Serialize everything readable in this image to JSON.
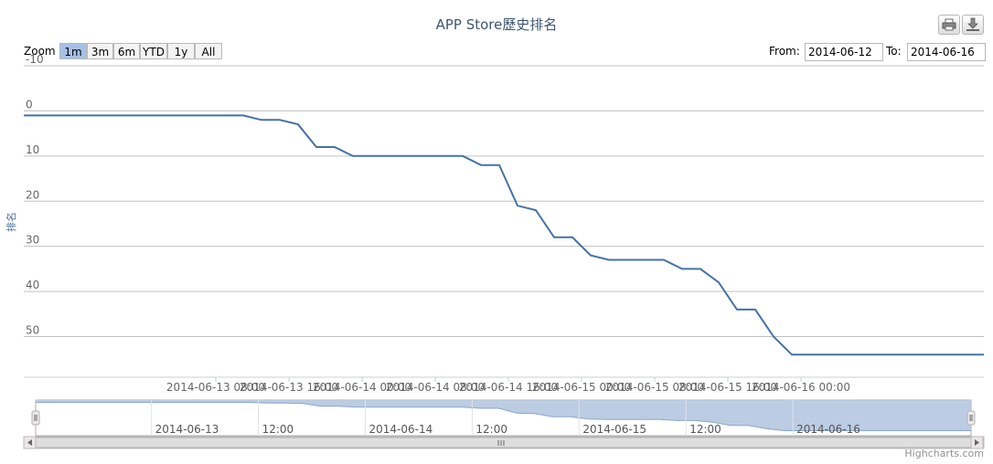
{
  "title": "APP Store歷史排名",
  "zoom": {
    "label": "Zoom",
    "buttons": [
      "1m",
      "3m",
      "6m",
      "YTD",
      "1y",
      "All"
    ],
    "active": "1m"
  },
  "range": {
    "from_label": "From:",
    "from_value": "2014-06-12",
    "to_label": "To:",
    "to_value": "2014-06-16"
  },
  "icons": {
    "print": "printer-icon",
    "export": "download-icon"
  },
  "credit": "Highcharts.com",
  "colors": {
    "line": "#4572a7",
    "navigator_fill": "#b8c9e0",
    "active_button": "#a6c1e6"
  },
  "chart_data": {
    "type": "line",
    "title": "APP Store歷史排名",
    "ylabel": "排名",
    "y_reversed": false,
    "ylim": [
      -10,
      59
    ],
    "yticks": [
      -10,
      0,
      10,
      20,
      30,
      40,
      50
    ],
    "xlim": [
      "2014-06-12 11:00",
      "2014-06-16 20:00"
    ],
    "xtick_labels": [
      "2014-06-13 08:00",
      "2014-06-13 16:00",
      "2014-06-14 00:00",
      "2014-06-14 08:00",
      "2014-06-14 16:00",
      "2014-06-15 00:00",
      "2014-06-15 08:00",
      "2014-06-15 16:00",
      "2014-06-16 00:00"
    ],
    "navigator_labels": [
      "2014-06-13",
      "12:00",
      "2014-06-14",
      "12:00",
      "2014-06-15",
      "12:00",
      "2014-06-16"
    ],
    "series": [
      {
        "values": [
          [
            "2014-06-12 11:00",
            1
          ],
          [
            "2014-06-13 11:00",
            1
          ],
          [
            "2014-06-13 13:00",
            2
          ],
          [
            "2014-06-13 15:00",
            2
          ],
          [
            "2014-06-13 17:00",
            3
          ],
          [
            "2014-06-13 19:00",
            8
          ],
          [
            "2014-06-13 21:00",
            8
          ],
          [
            "2014-06-13 23:00",
            10
          ],
          [
            "2014-06-14 05:00",
            10
          ],
          [
            "2014-06-14 11:00",
            10
          ],
          [
            "2014-06-14 13:00",
            12
          ],
          [
            "2014-06-14 15:00",
            12
          ],
          [
            "2014-06-14 17:00",
            21
          ],
          [
            "2014-06-14 19:00",
            22
          ],
          [
            "2014-06-14 21:00",
            28
          ],
          [
            "2014-06-14 23:00",
            28
          ],
          [
            "2014-06-15 01:00",
            32
          ],
          [
            "2014-06-15 03:00",
            33
          ],
          [
            "2014-06-15 09:00",
            33
          ],
          [
            "2014-06-15 11:00",
            35
          ],
          [
            "2014-06-15 13:00",
            35
          ],
          [
            "2014-06-15 15:00",
            38
          ],
          [
            "2014-06-15 17:00",
            44
          ],
          [
            "2014-06-15 19:00",
            44
          ],
          [
            "2014-06-15 21:00",
            50
          ],
          [
            "2014-06-15 23:00",
            54
          ],
          [
            "2014-06-16 05:00",
            54
          ],
          [
            "2014-06-16 20:00",
            54
          ]
        ]
      }
    ]
  }
}
